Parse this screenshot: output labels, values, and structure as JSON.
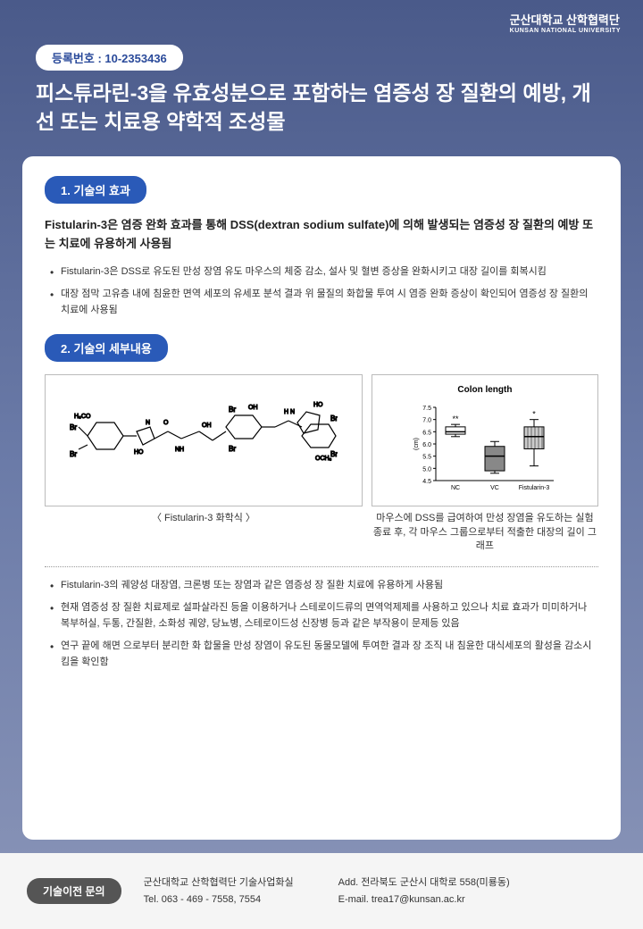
{
  "header": {
    "org_name": "군산대학교 산학협력단",
    "org_sub": "KUNSAN NATIONAL UNIVERSITY"
  },
  "registration": {
    "label": "등록번호 : 10-2353436"
  },
  "main_title": "피스튜라린-3을 유효성분으로 포함하는 염증성 장 질환의 예방, 개선 또는 치료용 약학적 조성물",
  "section1": {
    "badge": "1. 기술의 효과",
    "lead": "Fistularin-3은 염증 완화 효과를 통해 DSS(dextran sodium sulfate)에 의해 발생되는 염증성 장 질환의 예방 또는 치료에 유용하게 사용됨",
    "bullets": [
      "Fistularin-3은 DSS로 유도된 만성 장염 유도 마우스의 체중 감소, 설사 및 혈변 증상을 완화시키고 대장 길이를 회복시킴",
      "대장 점막 고유층 내에 침윤한 면역 세포의 유세포 분석 결과 위 물질의 화합물 투여 시 염증 완화 증상이 확인되어 염증성 장 질환의 치료에 사용됨"
    ]
  },
  "section2": {
    "badge": "2. 기술의 세부내용",
    "figure1_caption": "〈 Fistularin-3 화학식 〉",
    "figure2_caption": "마우스에 DSS를 급여하여 만성 장염을 유도하는 실험 종료 후, 각 마우스 그룹으로부터 적출한 대장의 길이 그래프",
    "chart": {
      "type": "boxplot",
      "title": "Colon length",
      "ylabel": "(cm)",
      "ylim": [
        4.5,
        7.5
      ],
      "ytick_step": 0.5,
      "categories": [
        "NC",
        "VC",
        "Fistularin-3"
      ],
      "boxes": [
        {
          "min": 6.3,
          "q1": 6.4,
          "median": 6.5,
          "q3": 6.7,
          "max": 6.8,
          "sig": "**",
          "fill": "#ffffff"
        },
        {
          "min": 4.8,
          "q1": 4.9,
          "median": 5.5,
          "q3": 5.9,
          "max": 6.1,
          "sig": "",
          "fill": "#888888"
        },
        {
          "min": 5.1,
          "q1": 5.8,
          "median": 6.3,
          "q3": 6.7,
          "max": 7.0,
          "sig": "*",
          "fill": "#cccccc",
          "hatch": true
        }
      ],
      "axis_color": "#000000",
      "text_color": "#000000",
      "fontsize": 9
    },
    "bullets_after": [
      "Fistularin-3의 궤양성 대장염, 크론병 또는 장염과 같은 염증성 장 질환 치료에 유용하게 사용됨",
      "현재 염증성 장 질환 치료제로 설파살라진 등을 이용하거나 스테로이드류의 면역억제제를 사용하고 있으나 치료 효과가 미미하거나 복부허실, 두통, 간질환, 소화성 궤양, 당뇨병, 스테로이드성 신장병 등과 같은 부작용이 문제등 있음",
      "연구 끝에 해면 으로부터 분리한 화 합물을 만성 장염이 유도된 동물모델에 투여한 결과 장 조직 내 침윤한 대식세포의 활성을 감소시킴을 확인함"
    ]
  },
  "footer": {
    "badge": "기술이전 문의",
    "col1_line1": "군산대학교 산학협력단 기술사업화실",
    "col1_line2": "Tel. 063 - 469 - 7558, 7554",
    "col2_line1": "Add. 전라북도 군산시 대학로 558(미룡동)",
    "col2_line2": "E-mail. trea17@kunsan.ac.kr"
  },
  "colors": {
    "badge_blue": "#2a5ab8",
    "bg_gradient_top": "#4a5a8a",
    "bg_gradient_bottom": "#8a95b8"
  }
}
